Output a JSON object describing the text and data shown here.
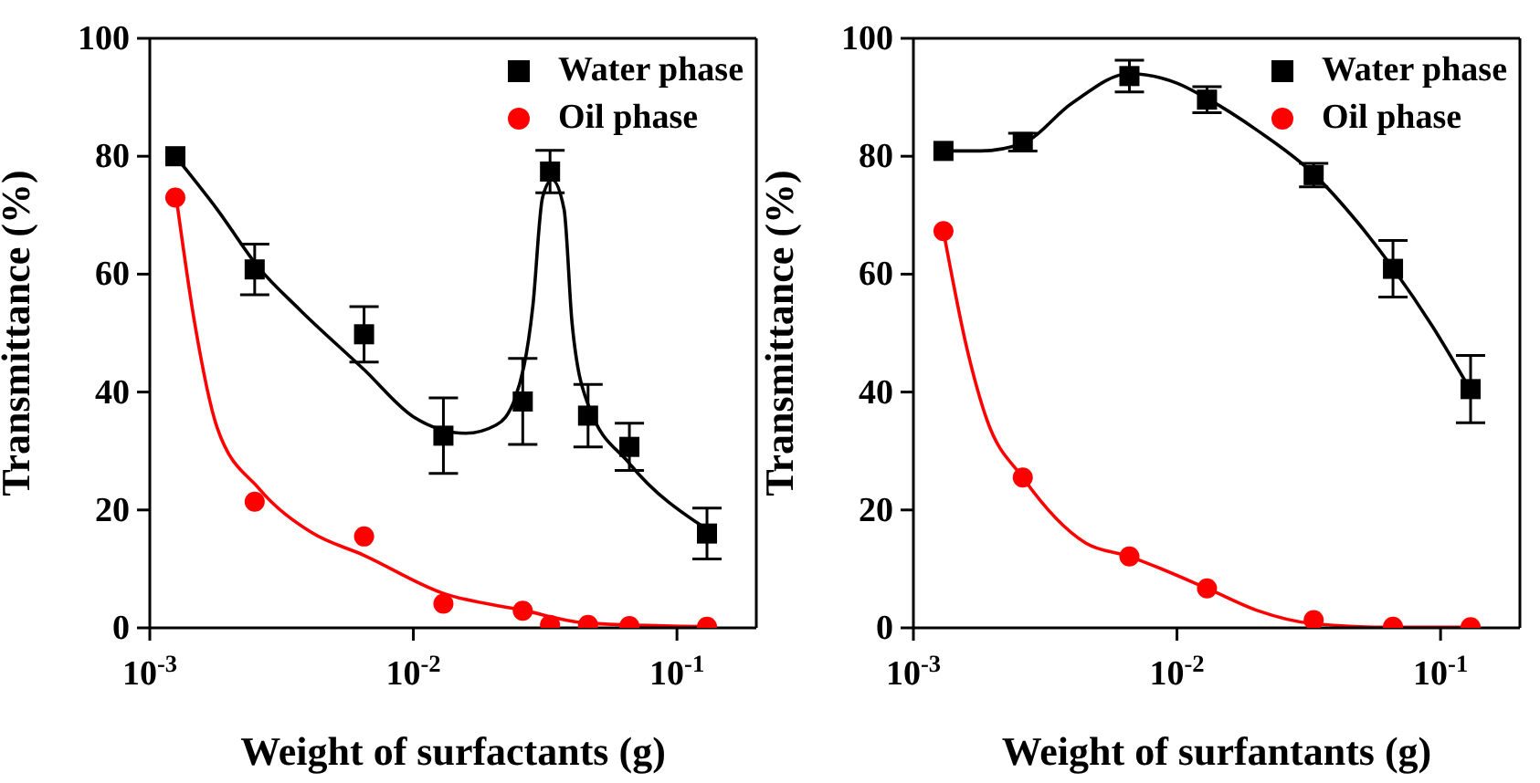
{
  "chart_data": [
    {
      "type": "scatter",
      "xlabel": "Weight of surfactants (g)",
      "ylabel": "Transmittance (%)",
      "log": "x",
      "xlim": [
        0.001,
        0.2
      ],
      "xticks": [
        {
          "value": 0.001,
          "label": "10$^{-3}$"
        },
        {
          "value": 0.01,
          "label": "10$^{-2}$"
        },
        {
          "value": 0.1,
          "label": "10$^{-1}$"
        }
      ],
      "ylim": [
        0,
        100
      ],
      "yticks": [
        0,
        20,
        40,
        60,
        80,
        100
      ],
      "grid": false,
      "legend": "top right",
      "x": [
        0.00125,
        0.0025,
        0.0065,
        0.013,
        0.026,
        0.033,
        0.046,
        0.066,
        0.13
      ],
      "series": [
        {
          "name": "Water phase",
          "type": "scatter",
          "marker": "square",
          "color": "#000000",
          "values": [
            80,
            60.8,
            49.8,
            32.6,
            38.4,
            77.4,
            36,
            30.7,
            16
          ],
          "errors": [
            null,
            4.3,
            4.7,
            6.4,
            7.3,
            3.6,
            5.3,
            4,
            4.3
          ]
        },
        {
          "name": "Oil phase",
          "type": "scatter",
          "marker": "circle",
          "color": "#ff0000",
          "values": [
            73,
            21.4,
            15.5,
            4.1,
            2.9,
            0.5,
            0.5,
            0.3,
            0.2
          ]
        },
        {
          "type": "line",
          "marker": "none",
          "color": "#000000",
          "x": [
            0.00125,
            0.0018,
            0.0026,
            0.0037,
            0.0065,
            0.01,
            0.0158,
            0.0206,
            0.0243,
            0.0284,
            0.0309,
            0.0336,
            0.0373,
            0.04,
            0.046,
            0.066,
            0.13
          ],
          "values": [
            80,
            71,
            61,
            54,
            43.8,
            35.8,
            33,
            34.4,
            38.9,
            54.6,
            73,
            76,
            71,
            51.7,
            37.9,
            27.9,
            16.7
          ]
        },
        {
          "type": "line",
          "marker": "none",
          "color": "#ff0000",
          "x": [
            0.00126,
            0.00148,
            0.0018,
            0.0026,
            0.0041,
            0.0065,
            0.0129,
            0.026,
            0.046,
            0.13
          ],
          "values": [
            73,
            51.7,
            34,
            23.6,
            16.2,
            12.3,
            5.9,
            3,
            0.8,
            0.2
          ]
        }
      ]
    },
    {
      "type": "scatter",
      "xlabel": "Weight of surfantants (g)",
      "ylabel": "Transmittance (%)",
      "log": "x",
      "xlim": [
        0.001,
        0.2
      ],
      "xticks": [
        {
          "value": 0.001,
          "label": "10$^{-3}$"
        },
        {
          "value": 0.01,
          "label": "10$^{-2}$"
        },
        {
          "value": 0.1,
          "label": "10$^{-1}$"
        }
      ],
      "ylim": [
        0,
        100
      ],
      "yticks": [
        0,
        20,
        40,
        60,
        80,
        100
      ],
      "grid": false,
      "legend": "top right",
      "x": [
        0.0013,
        0.0026,
        0.0066,
        0.013,
        0.033,
        0.066,
        0.13
      ],
      "series": [
        {
          "name": "Water phase",
          "type": "scatter",
          "marker": "square",
          "color": "#000000",
          "values": [
            80.9,
            82.4,
            93.6,
            89.6,
            76.8,
            60.9,
            40.5
          ],
          "errors": [
            null,
            1.5,
            2.7,
            2.2,
            2,
            4.8,
            5.7
          ]
        },
        {
          "name": "Oil phase",
          "type": "scatter",
          "marker": "circle",
          "color": "#ff0000",
          "values": [
            67.3,
            25.5,
            12.1,
            6.7,
            1.3,
            0.2,
            0.1
          ]
        },
        {
          "type": "line",
          "marker": "none",
          "color": "#000000",
          "x": [
            0.0013,
            0.0018,
            0.0026,
            0.004,
            0.0066,
            0.01,
            0.013,
            0.02,
            0.033,
            0.048,
            0.066,
            0.093,
            0.13
          ],
          "values": [
            80.9,
            80.9,
            82.2,
            89,
            94,
            92.4,
            89.8,
            84.5,
            77,
            69,
            61,
            51.2,
            40.3
          ]
        },
        {
          "type": "line",
          "marker": "none",
          "color": "#ff0000",
          "x": [
            0.0013,
            0.0016,
            0.0019,
            0.0026,
            0.0045,
            0.0066,
            0.013,
            0.02,
            0.033,
            0.066,
            0.13
          ],
          "values": [
            67.3,
            47.2,
            35.3,
            25.5,
            14.4,
            12.1,
            6.7,
            3,
            0.7,
            0.1,
            0.1
          ]
        }
      ]
    }
  ]
}
